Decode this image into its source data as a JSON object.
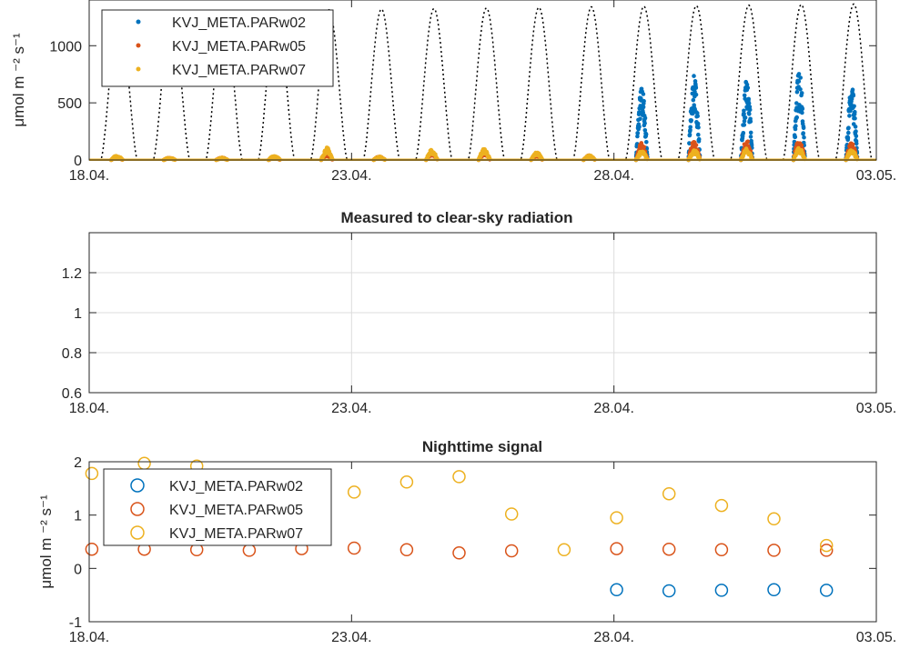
{
  "chart_data": [
    {
      "type": "scatter",
      "title": "",
      "xlabel": "",
      "ylabel": "μmol m ⁻² s⁻¹",
      "x_ticks": [
        "18.04.",
        "23.04.",
        "28.04.",
        "03.05."
      ],
      "y_ticks": [
        "0",
        "500",
        "1000"
      ],
      "xlim": [
        0,
        15
      ],
      "ylim": [
        0,
        1400
      ],
      "grid": false,
      "legend_position": "top-left",
      "clear_sky": {
        "style": "dotted black line",
        "day_peaks": [
          1270,
          1285,
          1295,
          1305,
          1315,
          1320,
          1325,
          1330,
          1335,
          1340,
          1345,
          1350,
          1355,
          1360,
          1365
        ]
      },
      "series": [
        {
          "name": "KVJ_META.PARw02",
          "color": "#0072BD",
          "daily_peak": [
            null,
            null,
            null,
            null,
            null,
            null,
            null,
            null,
            null,
            null,
            650,
            740,
            700,
            790,
            640
          ]
        },
        {
          "name": "KVJ_META.PARw05",
          "color": "#D95319",
          "daily_peak": [
            30,
            20,
            20,
            30,
            60,
            30,
            60,
            70,
            50,
            40,
            150,
            170,
            170,
            190,
            150
          ]
        },
        {
          "name": "KVJ_META.PARw07",
          "color": "#EDB120",
          "daily_peak": [
            40,
            20,
            20,
            40,
            110,
            30,
            90,
            100,
            70,
            40,
            80,
            90,
            100,
            110,
            90
          ]
        }
      ]
    },
    {
      "type": "scatter",
      "title": "Measured to clear-sky radiation",
      "xlabel": "",
      "ylabel": "",
      "x_ticks": [
        "18.04.",
        "23.04.",
        "28.04.",
        "03.05."
      ],
      "y_ticks": [
        "0.6",
        "0.8",
        "1",
        "1.2"
      ],
      "xlim": [
        0,
        15
      ],
      "ylim": [
        0.6,
        1.4
      ],
      "grid": true,
      "series": []
    },
    {
      "type": "scatter",
      "title": "Nighttime signal",
      "xlabel": "",
      "ylabel": "μmol m ⁻² s⁻¹",
      "x_ticks": [
        "18.04.",
        "23.04.",
        "28.04.",
        "03.05."
      ],
      "y_ticks": [
        "-1",
        "0",
        "1",
        "2"
      ],
      "xlim": [
        0,
        15
      ],
      "ylim": [
        -1,
        2
      ],
      "grid": false,
      "legend_position": "top-left",
      "series": [
        {
          "name": "KVJ_META.PARw02",
          "color": "#0072BD",
          "x": [
            10.05,
            11.05,
            12.05,
            13.05,
            14.05
          ],
          "y": [
            -0.4,
            -0.42,
            -0.41,
            -0.4,
            -0.41
          ]
        },
        {
          "name": "KVJ_META.PARw05",
          "color": "#D95319",
          "x": [
            0.05,
            1.05,
            2.05,
            3.05,
            4.05,
            5.05,
            6.05,
            7.05,
            8.05,
            10.05,
            11.05,
            12.05,
            13.05,
            14.05
          ],
          "y": [
            0.36,
            0.36,
            0.35,
            0.34,
            0.37,
            0.38,
            0.35,
            0.29,
            0.33,
            0.37,
            0.36,
            0.35,
            0.34,
            0.34
          ]
        },
        {
          "name": "KVJ_META.PARw07",
          "color": "#EDB120",
          "x": [
            0.05,
            1.05,
            2.05,
            5.05,
            6.05,
            7.05,
            8.05,
            9.05,
            10.05,
            11.05,
            12.05,
            13.05,
            14.05
          ],
          "y": [
            1.78,
            1.97,
            1.92,
            1.43,
            1.62,
            1.72,
            1.02,
            0.35,
            0.95,
            1.4,
            1.18,
            0.93,
            0.43
          ]
        }
      ]
    }
  ]
}
